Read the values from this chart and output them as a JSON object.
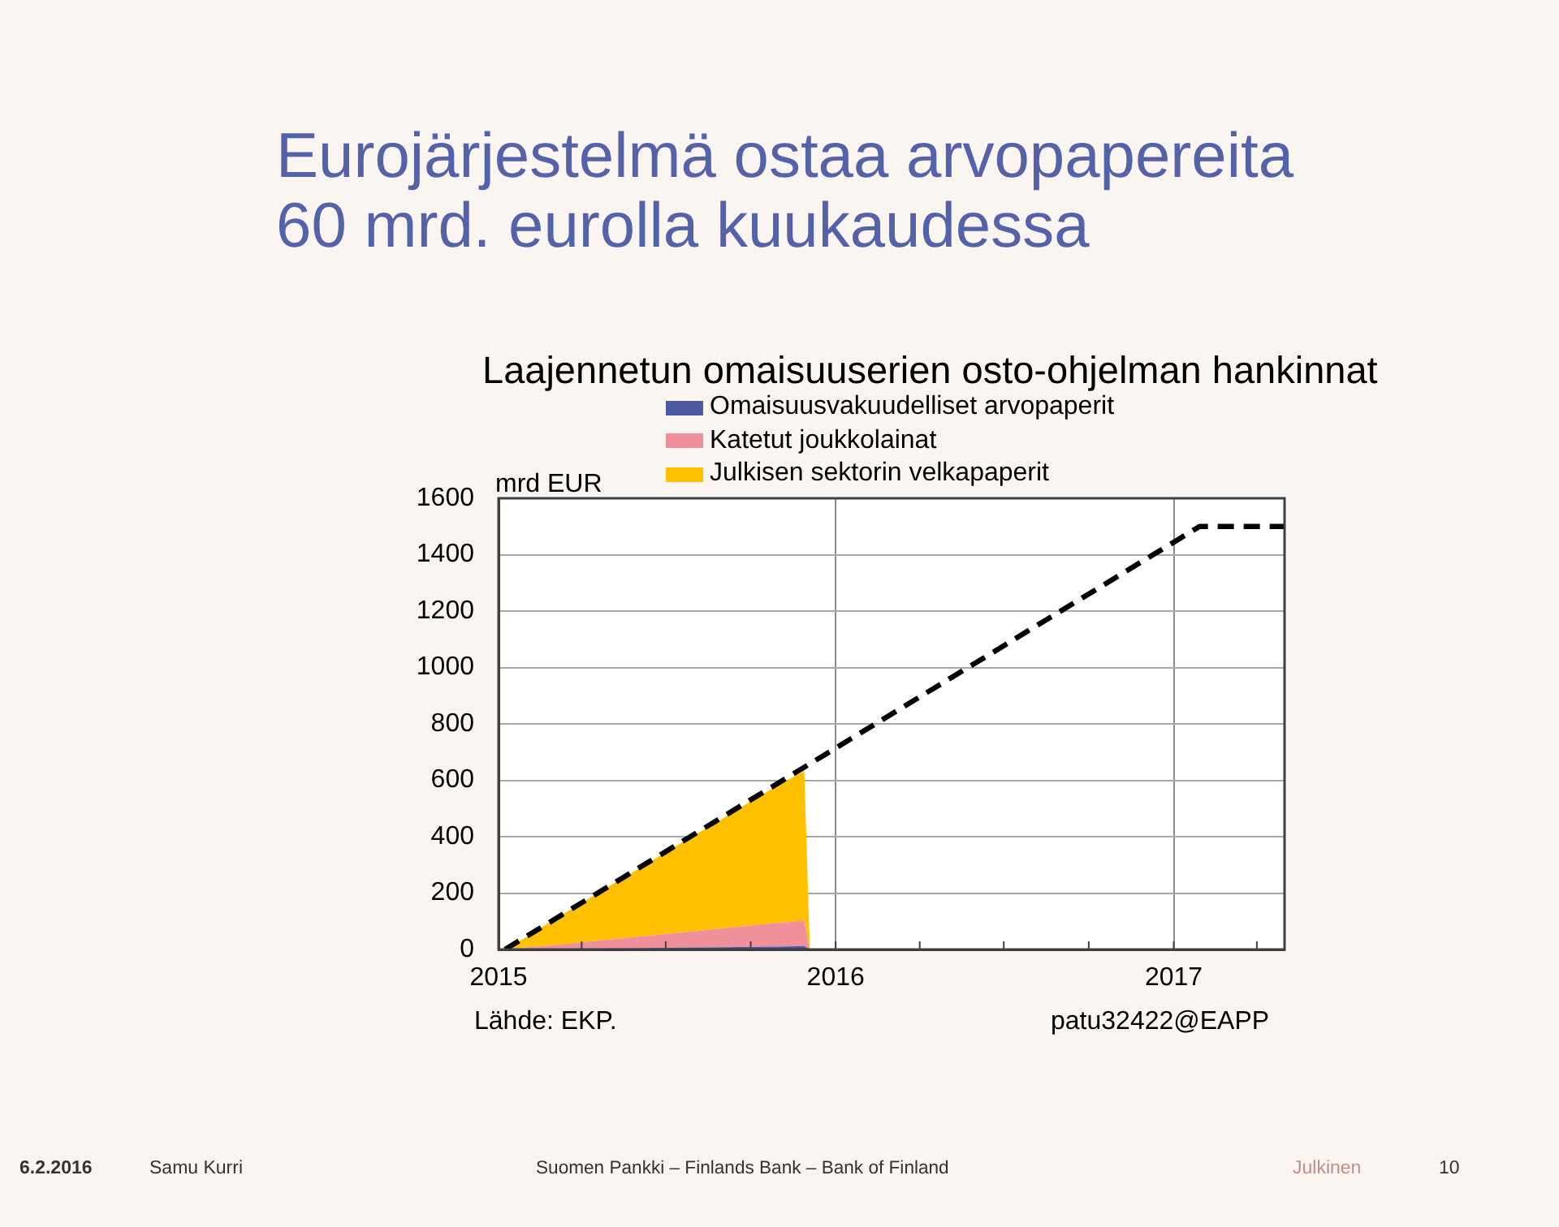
{
  "chart_data": {
    "type": "area",
    "title": "Eurojärjestelmä ostaa arvopapereita 60 mrd. eurolla kuukaudessa",
    "subtitle": "Laajennetun omaisuuserien osto-ohjelman hankinnat",
    "ylabel": "mrd EUR",
    "annotations": [
      "Lähde: EKP.",
      "patu32422@EAPP",
      "6.2.2016",
      "Samu Kurri",
      "Suomen Pankki – Finlands Bank – Bank of Finland",
      "Julkinen",
      "10"
    ],
    "x": [
      "2015-01-08",
      "2015-02-01",
      "2015-03-01",
      "2015-04-01",
      "2015-05-01",
      "2015-06-01",
      "2015-07-01",
      "2015-08-01",
      "2015-09-01",
      "2015-10-01",
      "2015-11-01",
      "2015-11-28",
      "2015-12-04"
    ],
    "series": [
      {
        "name": "Omaisuusvakuudelliset arvopaperit",
        "color": "#4f5aa5",
        "values": [
          0,
          1,
          2,
          3,
          4,
          5,
          6,
          7,
          8,
          9,
          10,
          12,
          0
        ]
      },
      {
        "name": "Katetut joukkolainat",
        "color": "#f0909a",
        "values": [
          0,
          7,
          13,
          22,
          31,
          40,
          49,
          58,
          67,
          76,
          85,
          90,
          0
        ]
      },
      {
        "name": "Julkisen sektorin velkapaperit",
        "color": "#ffc000",
        "values": [
          0,
          37,
          90,
          140,
          190,
          240,
          290,
          340,
          390,
          440,
          490,
          531,
          0
        ]
      },
      {
        "type": "line",
        "color": "#000000",
        "line_style": "dashed",
        "x": [
          "2015-01-08",
          "2017-01-29",
          "2017-05-01"
        ],
        "values": [
          0,
          1500,
          1500
        ]
      }
    ],
    "stacked": true,
    "xlim": [
      "2015-01-01",
      "2017-05-01"
    ],
    "xticks": [
      {
        "value": "2015-01",
        "label": "2015"
      },
      {
        "value": "2015-04",
        "label": null
      },
      {
        "value": "2015-07",
        "label": null
      },
      {
        "value": "2015-10",
        "label": null
      },
      {
        "value": "2016-01",
        "label": "2016"
      },
      {
        "value": "2016-04",
        "label": null
      },
      {
        "value": "2016-07",
        "label": null
      },
      {
        "value": "2016-10",
        "label": null
      },
      {
        "value": "2017-01",
        "label": "2017"
      },
      {
        "value": "2017-04",
        "label": null
      }
    ],
    "ylim": [
      0,
      1600
    ],
    "yticks": [
      0,
      200,
      400,
      600,
      800,
      1000,
      1200,
      1400,
      1600
    ],
    "grid": true,
    "legend": "top"
  }
}
